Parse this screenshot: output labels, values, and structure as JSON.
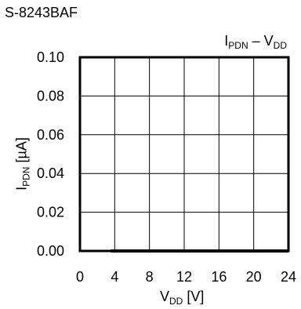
{
  "part_number": "S-8243BAF",
  "chart_data": {
    "type": "line",
    "title_main": "I",
    "title_main_sub": "PDN",
    "title_sep": " – ",
    "title_var": "V",
    "title_var_sub": "DD",
    "xlabel_main": "V",
    "xlabel_sub": "DD",
    "xlabel_unit": " [V]",
    "ylabel_main": "I",
    "ylabel_sub": "PDN",
    "ylabel_unit": " [µA]",
    "xlim": [
      0,
      24
    ],
    "ylim": [
      0,
      0.1
    ],
    "xticks": [
      0,
      4,
      8,
      12,
      16,
      20,
      24
    ],
    "xtick_labels": [
      "0",
      "4",
      "8",
      "12",
      "16",
      "20",
      "24"
    ],
    "yticks": [
      0,
      0.02,
      0.04,
      0.06,
      0.08,
      0.1
    ],
    "ytick_labels": [
      "0.00",
      "0.02",
      "0.04",
      "0.06",
      "0.08",
      "0.10"
    ],
    "grid": true,
    "series": [
      {
        "x": [
          3.5,
          6,
          8,
          10,
          12,
          14,
          16,
          18,
          20,
          22,
          24
        ],
        "y": [
          0,
          0,
          0,
          0,
          0,
          0,
          0,
          0,
          0,
          0,
          0
        ]
      }
    ]
  }
}
